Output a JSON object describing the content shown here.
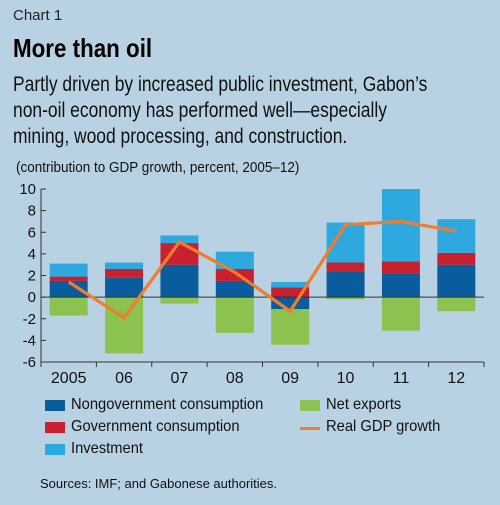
{
  "header": {
    "chart_label": "Chart 1",
    "title": "More than oil",
    "subtitle_lines": [
      "Partly driven by increased public investment, Gabon’s",
      "non-oil economy has performed well—especially",
      "mining, wood processing, and construction."
    ],
    "units": "(contribution to GDP growth, percent, 2005–12)"
  },
  "source": "Sources: IMF; and Gabonese authorities.",
  "colors": {
    "background": "#b9d2e3",
    "nongovernment": "#0a5d9c",
    "government": "#c8202f",
    "investment": "#2ea9df",
    "net_exports": "#8cc24f",
    "gdp_line": "#f07d2b"
  },
  "chart_data": {
    "type": "bar",
    "stacked": true,
    "categories": [
      "2005",
      "06",
      "07",
      "08",
      "09",
      "10",
      "11",
      "12"
    ],
    "ylim": [
      -6,
      10
    ],
    "yticks": [
      -6,
      -4,
      -2,
      0,
      2,
      4,
      6,
      8,
      10
    ],
    "series": [
      {
        "name": "Nongovernment consumption",
        "type": "bar",
        "color": "#0a5d9c",
        "values": [
          1.5,
          1.8,
          3.0,
          1.5,
          -1.1,
          2.4,
          2.2,
          3.0
        ]
      },
      {
        "name": "Government consumption",
        "type": "bar",
        "color": "#c8202f",
        "values": [
          0.4,
          0.8,
          2.0,
          1.1,
          0.9,
          0.8,
          1.1,
          1.1
        ]
      },
      {
        "name": "Investment",
        "type": "bar",
        "color": "#2ea9df",
        "values": [
          1.2,
          0.6,
          0.7,
          1.6,
          0.5,
          3.7,
          6.7,
          3.1
        ]
      },
      {
        "name": "Net exports",
        "type": "bar",
        "color": "#8cc24f",
        "values": [
          -1.7,
          -5.2,
          -0.6,
          -3.3,
          -3.3,
          -0.2,
          -3.1,
          -1.3
        ]
      },
      {
        "name": "Real GDP growth",
        "type": "line",
        "color": "#f07d2b",
        "values": [
          1.4,
          -1.9,
          5.1,
          2.3,
          -1.3,
          6.7,
          7.0,
          6.1
        ]
      }
    ],
    "legend_position": "bottom",
    "grid": false
  }
}
